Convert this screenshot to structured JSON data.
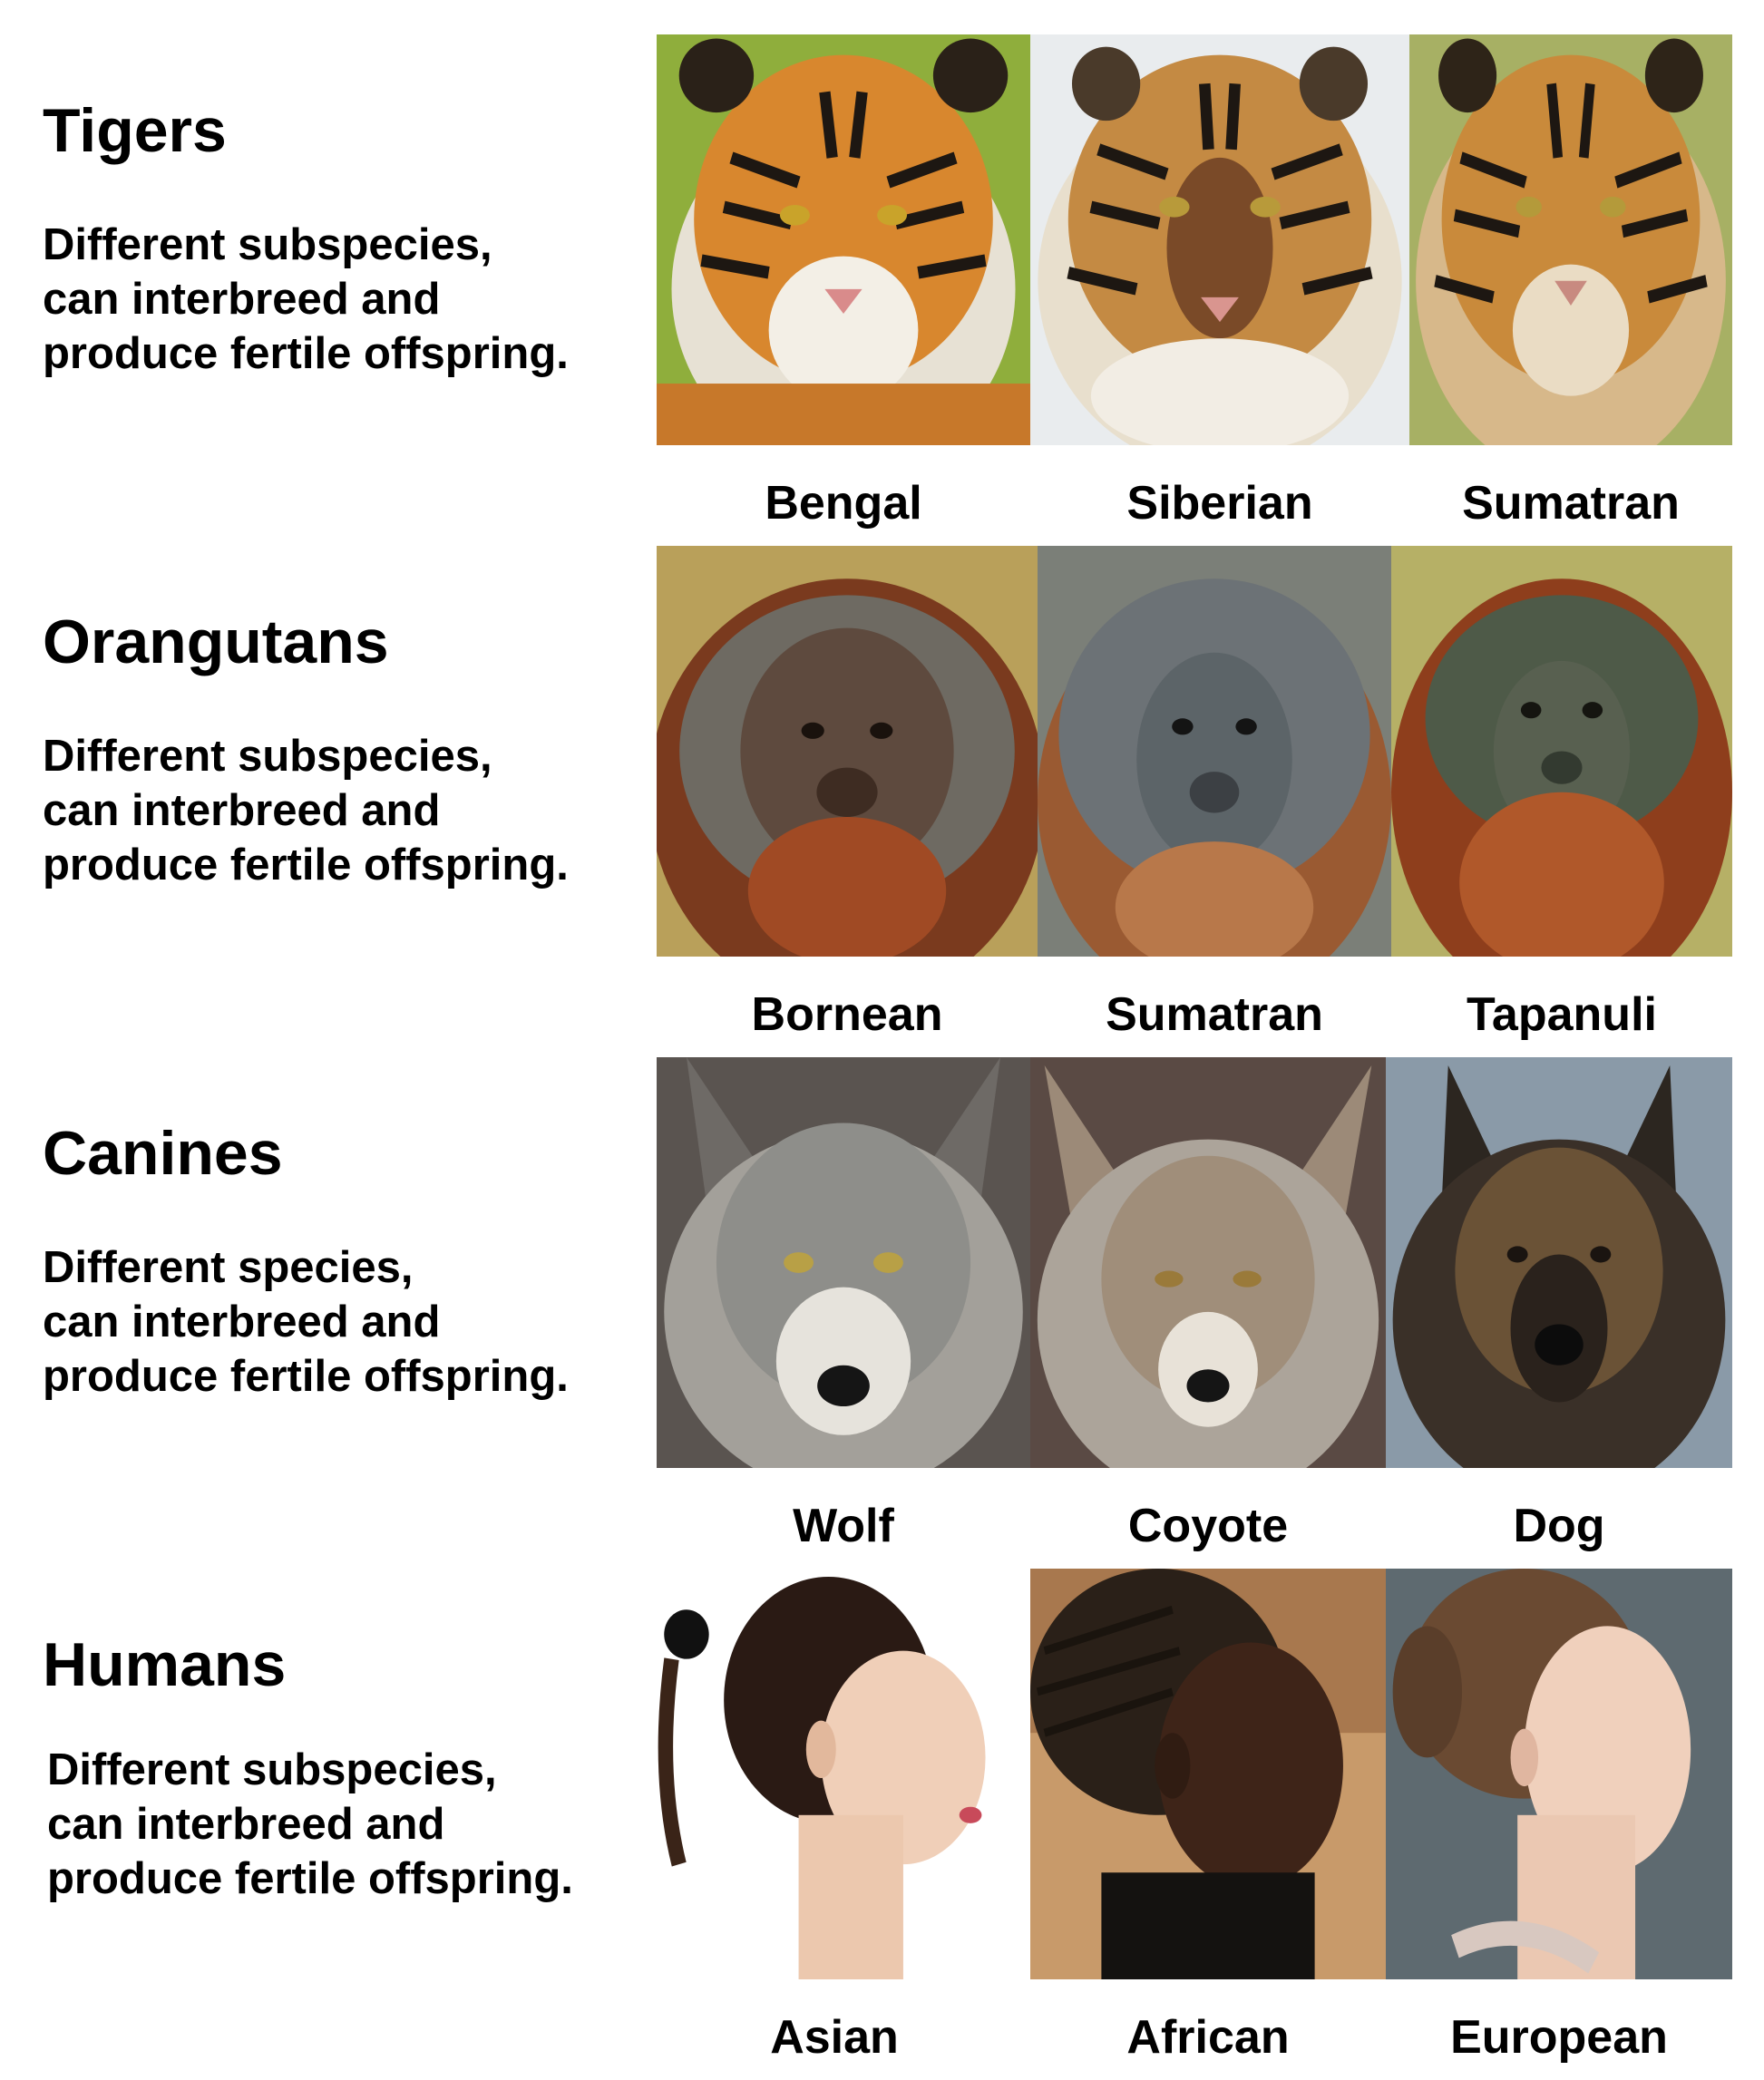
{
  "rows": [
    {
      "heading": "Tigers",
      "description": "Different subspecies,\ncan interbreed and\nproduce fertile offspring.",
      "images": [
        {
          "caption": "Bengal",
          "subject": "bengal-tiger-face"
        },
        {
          "caption": "Siberian",
          "subject": "siberian-tiger-face"
        },
        {
          "caption": "Sumatran",
          "subject": "sumatran-tiger-face"
        }
      ]
    },
    {
      "heading": "Orangutans",
      "description": "Different subspecies,\ncan interbreed and\nproduce fertile offspring.",
      "images": [
        {
          "caption": "Bornean",
          "subject": "bornean-orangutan-face"
        },
        {
          "caption": "Sumatran",
          "subject": "sumatran-orangutan-face"
        },
        {
          "caption": "Tapanuli",
          "subject": "tapanuli-orangutan-face"
        }
      ]
    },
    {
      "heading": "Canines",
      "description": "Different species,\ncan interbreed and\nproduce fertile offspring.",
      "images": [
        {
          "caption": "Wolf",
          "subject": "wolf-face"
        },
        {
          "caption": "Coyote",
          "subject": "coyote-face"
        },
        {
          "caption": "Dog",
          "subject": "german-shepherd-face"
        }
      ]
    },
    {
      "heading": "Humans",
      "description": "Different subspecies,\ncan interbreed and\nproduce fertile offspring.",
      "images": [
        {
          "caption": "Asian",
          "subject": "asian-woman-profile"
        },
        {
          "caption": "African",
          "subject": "african-woman-profile"
        },
        {
          "caption": "European",
          "subject": "european-woman-profile"
        }
      ]
    }
  ],
  "colors": {
    "text": "#000000",
    "background": "#ffffff",
    "tiger_orange": "#d8872e",
    "orangutan_red": "#9a4a22",
    "wolf_gray": "#8e8e8a",
    "dog_dark": "#2c2620"
  }
}
